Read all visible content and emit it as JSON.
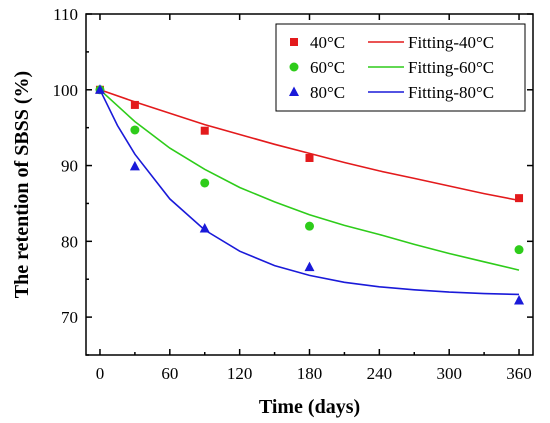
{
  "chart_data": {
    "type": "scatter",
    "xlabel": "Time (days)",
    "ylabel": "The retention of SBSS (%)",
    "xlim": [
      -12,
      372
    ],
    "ylim": [
      65,
      110
    ],
    "xticks": [
      0,
      60,
      120,
      180,
      240,
      300,
      360
    ],
    "yticks": [
      70,
      80,
      90,
      100,
      110
    ],
    "legend_position": "top-right",
    "series": [
      {
        "name": "40°C",
        "fit_name": "Fitting-40°C",
        "marker": "square",
        "color": "#e31a1c",
        "x": [
          0,
          30,
          90,
          180,
          360
        ],
        "y": [
          100,
          98,
          94.6,
          91,
          85.7
        ],
        "fit_x": [
          0,
          30,
          60,
          90,
          120,
          150,
          180,
          210,
          240,
          270,
          300,
          330,
          360
        ],
        "fit_y": [
          100,
          98.4,
          96.9,
          95.4,
          94.1,
          92.8,
          91.6,
          90.4,
          89.3,
          88.3,
          87.3,
          86.3,
          85.4
        ]
      },
      {
        "name": "60°C",
        "fit_name": "Fitting-60°C",
        "marker": "circle",
        "color": "#2ecc1a",
        "x": [
          0,
          30,
          90,
          180,
          360
        ],
        "y": [
          100,
          94.7,
          87.7,
          82,
          78.9
        ],
        "fit_x": [
          0,
          30,
          60,
          90,
          120,
          150,
          180,
          210,
          240,
          270,
          300,
          330,
          360
        ],
        "fit_y": [
          100,
          95.8,
          92.3,
          89.5,
          87.1,
          85.2,
          83.5,
          82.1,
          80.9,
          79.6,
          78.4,
          77.3,
          76.2
        ]
      },
      {
        "name": "80°C",
        "fit_name": "Fitting-80°C",
        "marker": "triangle",
        "color": "#1a1ad9",
        "x": [
          0,
          30,
          90,
          180,
          360
        ],
        "y": [
          100,
          89.9,
          81.7,
          76.6,
          72.2
        ],
        "fit_x": [
          0,
          15,
          30,
          60,
          90,
          120,
          150,
          180,
          210,
          240,
          270,
          300,
          330,
          360
        ],
        "fit_y": [
          100,
          95.3,
          91.5,
          85.6,
          81.5,
          78.7,
          76.8,
          75.5,
          74.6,
          74,
          73.6,
          73.3,
          73.1,
          73
        ]
      }
    ]
  }
}
